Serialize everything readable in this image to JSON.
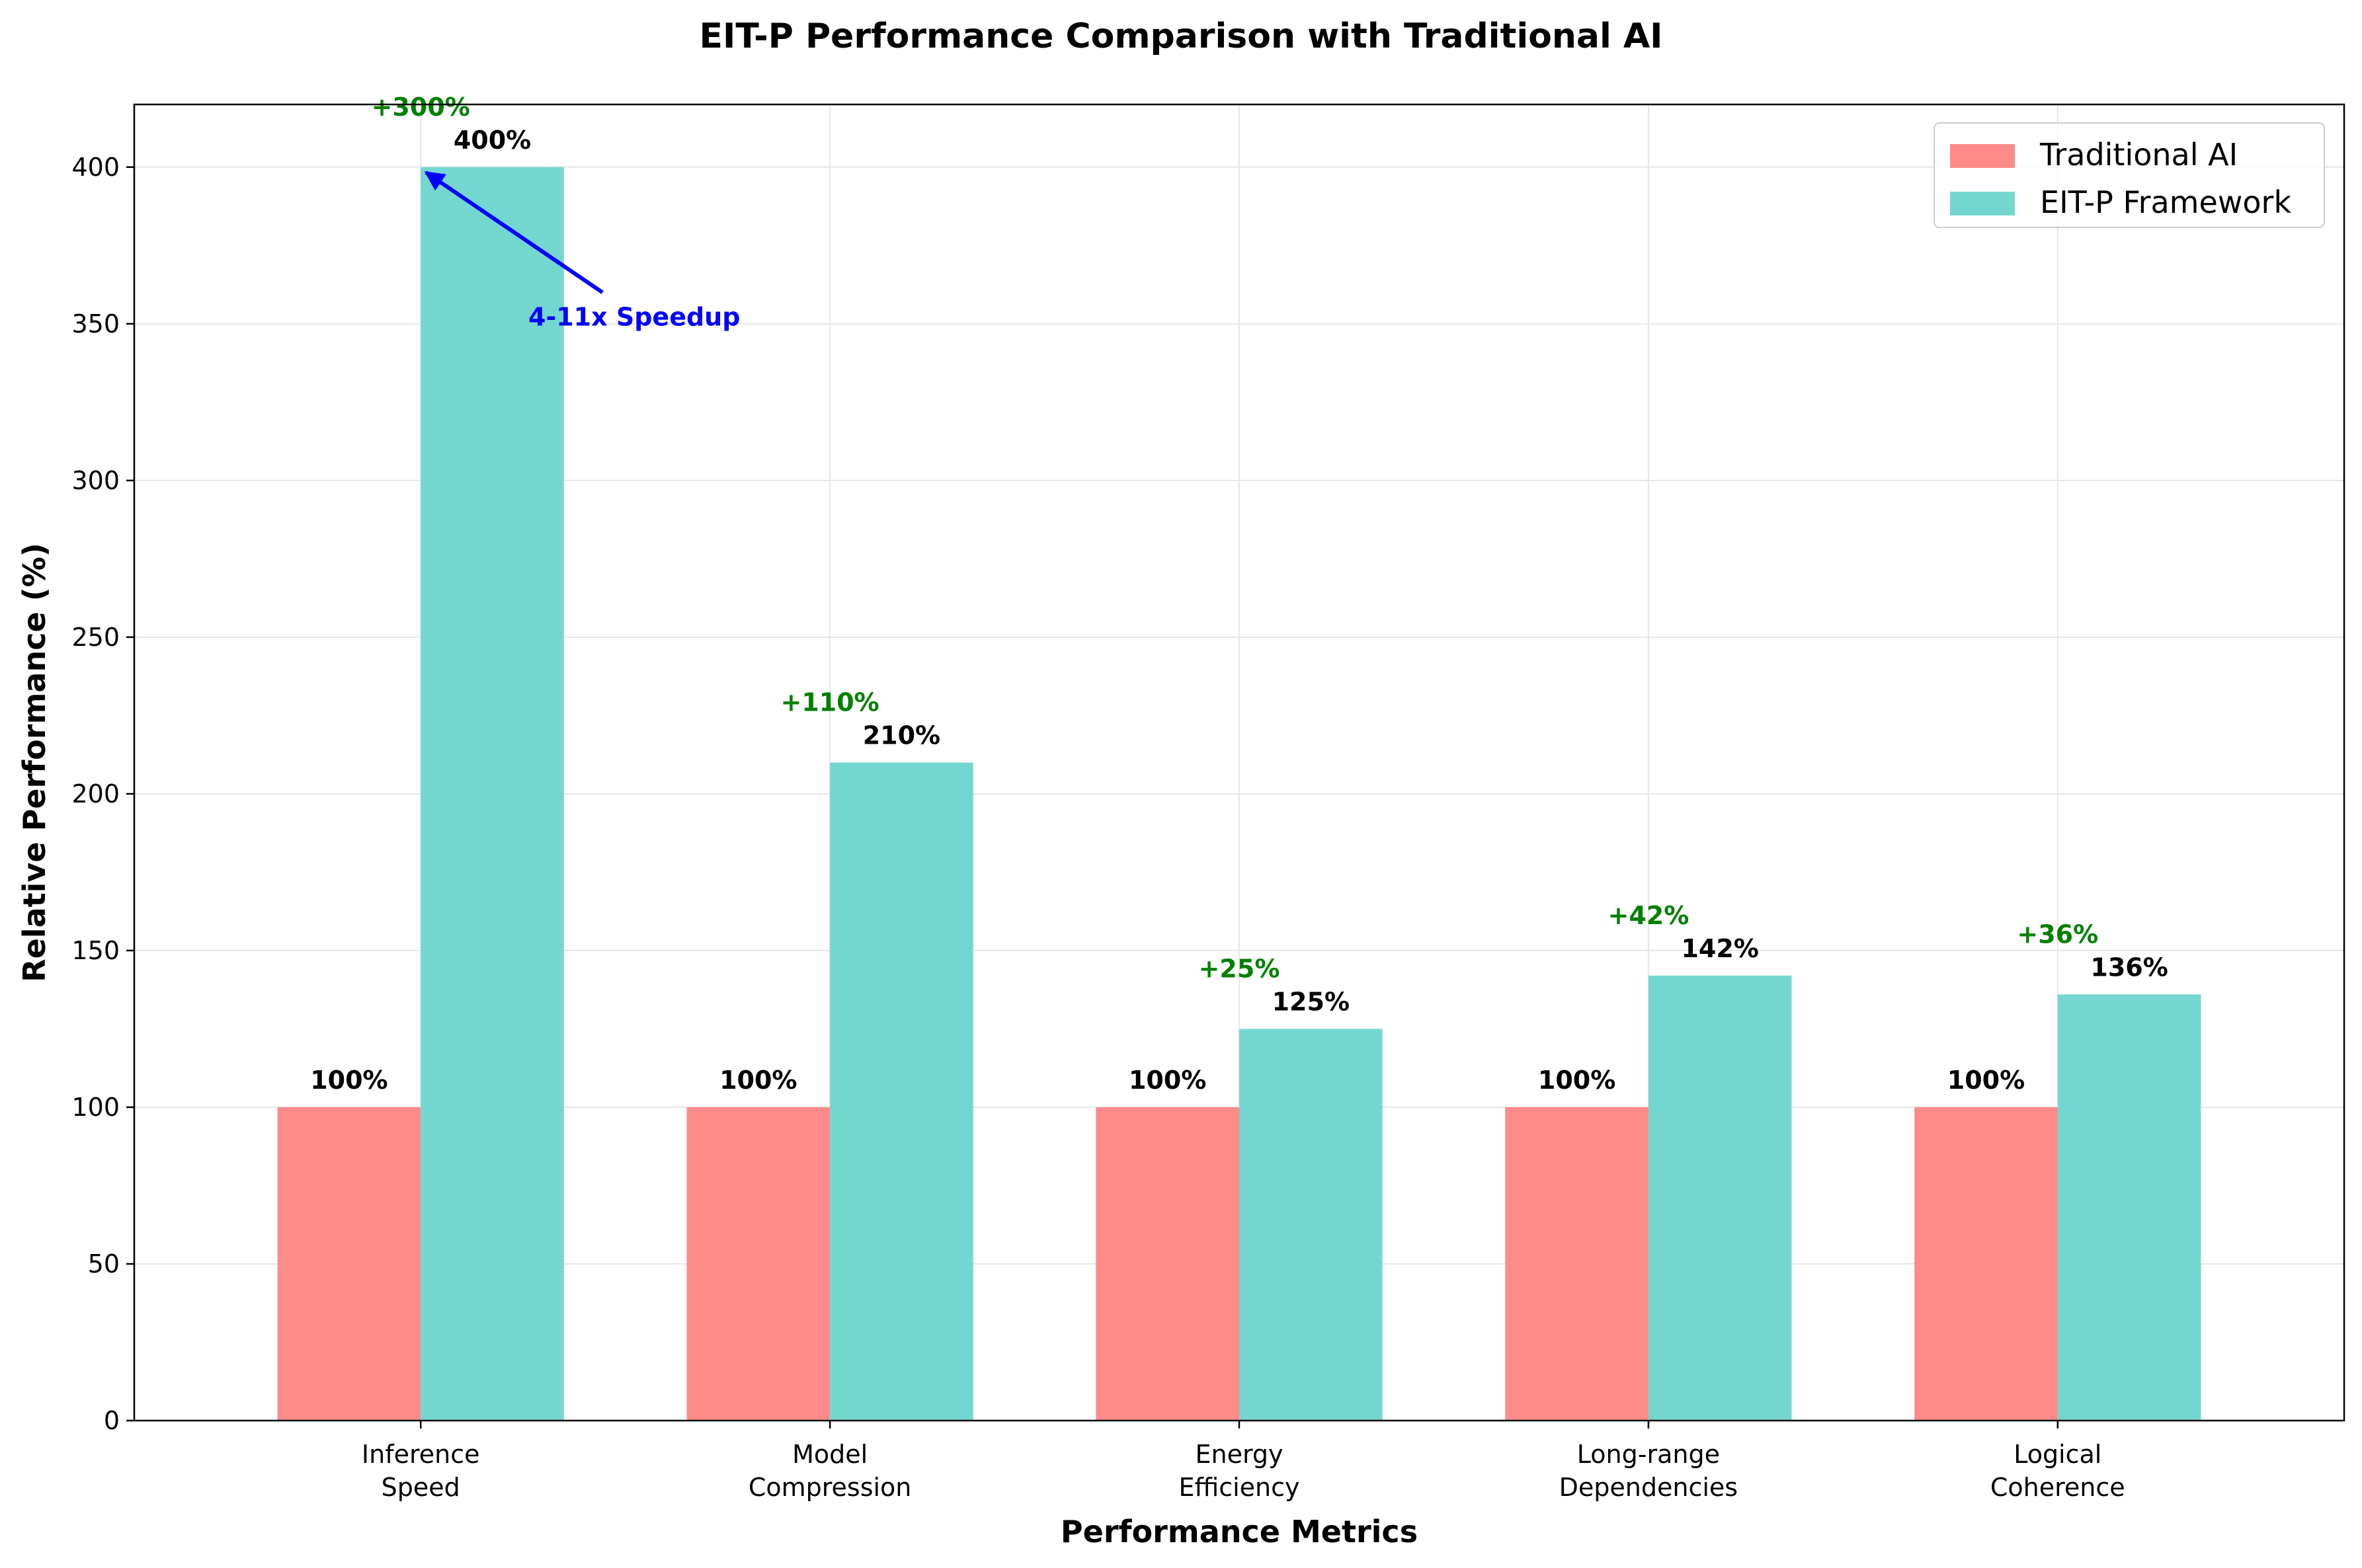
{
  "chart_data": {
    "type": "bar",
    "title": "EIT-P Performance Comparison with Traditional AI",
    "xlabel": "Performance Metrics",
    "ylabel": "Relative Performance (%)",
    "ylim": [
      0,
      420
    ],
    "yticks": [
      0,
      50,
      100,
      150,
      200,
      250,
      300,
      350,
      400
    ],
    "grid": true,
    "legend_position": "top-right",
    "categories": [
      [
        "Inference",
        "Speed"
      ],
      [
        "Model",
        "Compression"
      ],
      [
        "Energy",
        "Efficiency"
      ],
      [
        "Long-range",
        "Dependencies"
      ],
      [
        "Logical",
        "Coherence"
      ]
    ],
    "series": [
      {
        "name": "Traditional AI",
        "color": "#ff8a8a",
        "values": [
          100,
          100,
          100,
          100,
          100
        ],
        "labels": [
          "100%",
          "100%",
          "100%",
          "100%",
          "100%"
        ]
      },
      {
        "name": "EIT-P Framework",
        "color": "#74d7cf",
        "values": [
          400,
          210,
          125,
          142,
          136
        ],
        "labels": [
          "400%",
          "210%",
          "125%",
          "142%",
          "136%"
        ]
      }
    ],
    "improvements": [
      "+300%",
      "+110%",
      "+25%",
      "+42%",
      "+36%"
    ],
    "improvement_color": "#008000",
    "annotation": {
      "text": "4-11x Speedup",
      "color": "#0000ff",
      "points_to_category": 0,
      "points_to_value": 400,
      "text_value": 360
    }
  }
}
